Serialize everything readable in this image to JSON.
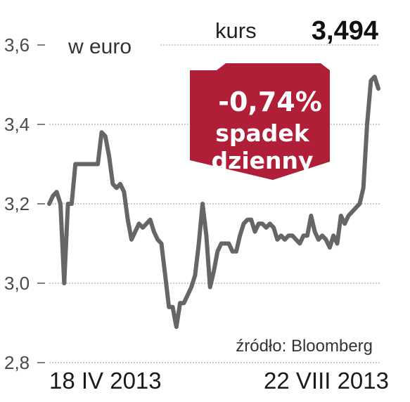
{
  "header": {
    "unit_label": "w euro",
    "kurs_label": "kurs",
    "kurs_value": "3,494"
  },
  "badge": {
    "change": "-0,74%",
    "line1": "spadek",
    "line2": "dzienny",
    "color": "#b01e37"
  },
  "source": "źródło: Bloomberg",
  "chart_data": {
    "type": "line",
    "x_start_label": "18 IV 2013",
    "x_end_label": "22 VIII 2013",
    "ylim": [
      2.8,
      3.6
    ],
    "yticks": [
      2.8,
      3.0,
      3.2,
      3.4,
      3.6
    ],
    "ytick_labels": [
      "2,8",
      "3,0",
      "3,2",
      "3,4",
      "3,6"
    ],
    "grid": true,
    "line_color": "#666666",
    "series": [
      {
        "values": [
          3.2,
          3.22,
          3.23,
          3.2,
          3.0,
          3.2,
          3.2,
          3.3,
          3.3,
          3.3,
          3.3,
          3.3,
          3.3,
          3.3,
          3.38,
          3.37,
          3.32,
          3.25,
          3.24,
          3.25,
          3.23,
          3.16,
          3.11,
          3.13,
          3.15,
          3.14,
          3.15,
          3.16,
          3.13,
          3.11,
          3.1,
          3.02,
          2.94,
          2.94,
          2.89,
          2.95,
          2.95,
          2.97,
          2.99,
          3.02,
          3.1,
          3.2,
          3.12,
          2.99,
          3.03,
          3.08,
          3.1,
          3.1,
          3.1,
          3.08,
          3.08,
          3.12,
          3.15,
          3.16,
          3.16,
          3.13,
          3.15,
          3.15,
          3.14,
          3.15,
          3.14,
          3.11,
          3.12,
          3.11,
          3.12,
          3.12,
          3.11,
          3.1,
          3.12,
          3.12,
          3.17,
          3.13,
          3.11,
          3.12,
          3.11,
          3.09,
          3.12,
          3.1,
          3.17,
          3.15,
          3.17,
          3.18,
          3.19,
          3.2,
          3.24,
          3.4,
          3.51,
          3.52,
          3.49
        ]
      }
    ]
  }
}
